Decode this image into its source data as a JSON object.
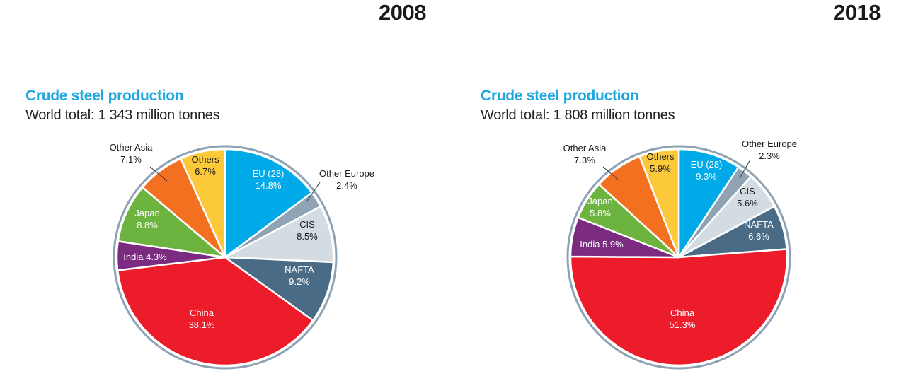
{
  "chart_data": [
    {
      "type": "pie",
      "year": "2008",
      "title": "Crude steel production",
      "subtitle": "World total: 1 343 million tonnes",
      "slices": [
        {
          "name": "EU (28)",
          "value": 14.8,
          "label": "14.8%",
          "color": "#00a9e8",
          "text_color": "#ffffff"
        },
        {
          "name": "Other Europe",
          "value": 2.4,
          "label": "2.4%",
          "color": "#8fa3b5",
          "text_color": "#1a1a1a"
        },
        {
          "name": "CIS",
          "value": 8.5,
          "label": "8.5%",
          "color": "#d3dbe3",
          "text_color": "#1a1a1a"
        },
        {
          "name": "NAFTA",
          "value": 9.2,
          "label": "9.2%",
          "color": "#4a6b85",
          "text_color": "#ffffff"
        },
        {
          "name": "China",
          "value": 38.1,
          "label": "38.1%",
          "color": "#ed1c2b",
          "text_color": "#ffffff"
        },
        {
          "name": "India",
          "value": 4.3,
          "label": "4.3%",
          "color": "#7b2b80",
          "text_color": "#ffffff"
        },
        {
          "name": "Japan",
          "value": 8.8,
          "label": "8.8%",
          "color": "#6db33f",
          "text_color": "#ffffff"
        },
        {
          "name": "Other Asia",
          "value": 7.1,
          "label": "7.1%",
          "color": "#f37021",
          "text_color": "#1a1a1a"
        },
        {
          "name": "Others",
          "value": 6.7,
          "label": "6.7%",
          "color": "#fcc93a",
          "text_color": "#1a1a1a"
        }
      ]
    },
    {
      "type": "pie",
      "year": "2018",
      "title": "Crude steel production",
      "subtitle": "World total: 1 808 million tonnes",
      "slices": [
        {
          "name": "EU (28)",
          "value": 9.3,
          "label": "9.3%",
          "color": "#00a9e8",
          "text_color": "#ffffff"
        },
        {
          "name": "Other Europe",
          "value": 2.3,
          "label": "2.3%",
          "color": "#8fa3b5",
          "text_color": "#1a1a1a"
        },
        {
          "name": "CIS",
          "value": 5.6,
          "label": "5.6%",
          "color": "#d3dbe3",
          "text_color": "#1a1a1a"
        },
        {
          "name": "NAFTA",
          "value": 6.6,
          "label": "6.6%",
          "color": "#4a6b85",
          "text_color": "#ffffff"
        },
        {
          "name": "China",
          "value": 51.3,
          "label": "51.3%",
          "color": "#ed1c2b",
          "text_color": "#ffffff"
        },
        {
          "name": "India",
          "value": 5.9,
          "label": "5.9%",
          "color": "#7b2b80",
          "text_color": "#ffffff"
        },
        {
          "name": "Japan",
          "value": 5.8,
          "label": "5.8%",
          "color": "#6db33f",
          "text_color": "#ffffff"
        },
        {
          "name": "Other Asia",
          "value": 7.3,
          "label": "7.3%",
          "color": "#f37021",
          "text_color": "#1a1a1a"
        },
        {
          "name": "Others",
          "value": 5.9,
          "label": "5.9%",
          "color": "#fcc93a",
          "text_color": "#1a1a1a"
        }
      ]
    }
  ]
}
